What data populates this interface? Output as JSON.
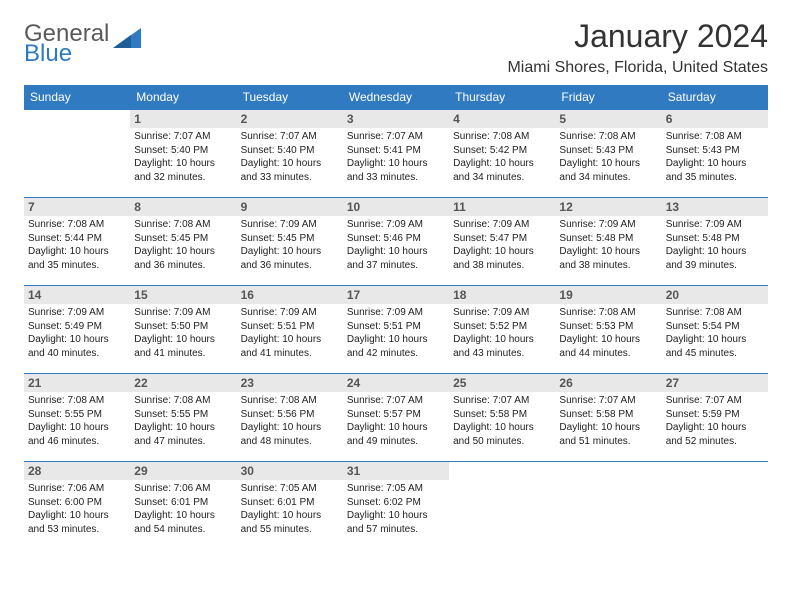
{
  "logo": {
    "word1": "General",
    "word2": "Blue"
  },
  "title": "January 2024",
  "location": "Miami Shores, Florida, United States",
  "header_bg": "#2f7ac0",
  "daynum_bg": "#e8e8e8",
  "border_color": "#2f7ac0",
  "day_headers": [
    "Sunday",
    "Monday",
    "Tuesday",
    "Wednesday",
    "Thursday",
    "Friday",
    "Saturday"
  ],
  "weeks": [
    [
      null,
      {
        "n": "1",
        "sunrise": "7:07 AM",
        "sunset": "5:40 PM",
        "daylight": "10 hours and 32 minutes."
      },
      {
        "n": "2",
        "sunrise": "7:07 AM",
        "sunset": "5:40 PM",
        "daylight": "10 hours and 33 minutes."
      },
      {
        "n": "3",
        "sunrise": "7:07 AM",
        "sunset": "5:41 PM",
        "daylight": "10 hours and 33 minutes."
      },
      {
        "n": "4",
        "sunrise": "7:08 AM",
        "sunset": "5:42 PM",
        "daylight": "10 hours and 34 minutes."
      },
      {
        "n": "5",
        "sunrise": "7:08 AM",
        "sunset": "5:43 PM",
        "daylight": "10 hours and 34 minutes."
      },
      {
        "n": "6",
        "sunrise": "7:08 AM",
        "sunset": "5:43 PM",
        "daylight": "10 hours and 35 minutes."
      }
    ],
    [
      {
        "n": "7",
        "sunrise": "7:08 AM",
        "sunset": "5:44 PM",
        "daylight": "10 hours and 35 minutes."
      },
      {
        "n": "8",
        "sunrise": "7:08 AM",
        "sunset": "5:45 PM",
        "daylight": "10 hours and 36 minutes."
      },
      {
        "n": "9",
        "sunrise": "7:09 AM",
        "sunset": "5:45 PM",
        "daylight": "10 hours and 36 minutes."
      },
      {
        "n": "10",
        "sunrise": "7:09 AM",
        "sunset": "5:46 PM",
        "daylight": "10 hours and 37 minutes."
      },
      {
        "n": "11",
        "sunrise": "7:09 AM",
        "sunset": "5:47 PM",
        "daylight": "10 hours and 38 minutes."
      },
      {
        "n": "12",
        "sunrise": "7:09 AM",
        "sunset": "5:48 PM",
        "daylight": "10 hours and 38 minutes."
      },
      {
        "n": "13",
        "sunrise": "7:09 AM",
        "sunset": "5:48 PM",
        "daylight": "10 hours and 39 minutes."
      }
    ],
    [
      {
        "n": "14",
        "sunrise": "7:09 AM",
        "sunset": "5:49 PM",
        "daylight": "10 hours and 40 minutes."
      },
      {
        "n": "15",
        "sunrise": "7:09 AM",
        "sunset": "5:50 PM",
        "daylight": "10 hours and 41 minutes."
      },
      {
        "n": "16",
        "sunrise": "7:09 AM",
        "sunset": "5:51 PM",
        "daylight": "10 hours and 41 minutes."
      },
      {
        "n": "17",
        "sunrise": "7:09 AM",
        "sunset": "5:51 PM",
        "daylight": "10 hours and 42 minutes."
      },
      {
        "n": "18",
        "sunrise": "7:09 AM",
        "sunset": "5:52 PM",
        "daylight": "10 hours and 43 minutes."
      },
      {
        "n": "19",
        "sunrise": "7:08 AM",
        "sunset": "5:53 PM",
        "daylight": "10 hours and 44 minutes."
      },
      {
        "n": "20",
        "sunrise": "7:08 AM",
        "sunset": "5:54 PM",
        "daylight": "10 hours and 45 minutes."
      }
    ],
    [
      {
        "n": "21",
        "sunrise": "7:08 AM",
        "sunset": "5:55 PM",
        "daylight": "10 hours and 46 minutes."
      },
      {
        "n": "22",
        "sunrise": "7:08 AM",
        "sunset": "5:55 PM",
        "daylight": "10 hours and 47 minutes."
      },
      {
        "n": "23",
        "sunrise": "7:08 AM",
        "sunset": "5:56 PM",
        "daylight": "10 hours and 48 minutes."
      },
      {
        "n": "24",
        "sunrise": "7:07 AM",
        "sunset": "5:57 PM",
        "daylight": "10 hours and 49 minutes."
      },
      {
        "n": "25",
        "sunrise": "7:07 AM",
        "sunset": "5:58 PM",
        "daylight": "10 hours and 50 minutes."
      },
      {
        "n": "26",
        "sunrise": "7:07 AM",
        "sunset": "5:58 PM",
        "daylight": "10 hours and 51 minutes."
      },
      {
        "n": "27",
        "sunrise": "7:07 AM",
        "sunset": "5:59 PM",
        "daylight": "10 hours and 52 minutes."
      }
    ],
    [
      {
        "n": "28",
        "sunrise": "7:06 AM",
        "sunset": "6:00 PM",
        "daylight": "10 hours and 53 minutes."
      },
      {
        "n": "29",
        "sunrise": "7:06 AM",
        "sunset": "6:01 PM",
        "daylight": "10 hours and 54 minutes."
      },
      {
        "n": "30",
        "sunrise": "7:05 AM",
        "sunset": "6:01 PM",
        "daylight": "10 hours and 55 minutes."
      },
      {
        "n": "31",
        "sunrise": "7:05 AM",
        "sunset": "6:02 PM",
        "daylight": "10 hours and 57 minutes."
      },
      null,
      null,
      null
    ]
  ],
  "labels": {
    "sunrise": "Sunrise:",
    "sunset": "Sunset:",
    "daylight": "Daylight:"
  }
}
